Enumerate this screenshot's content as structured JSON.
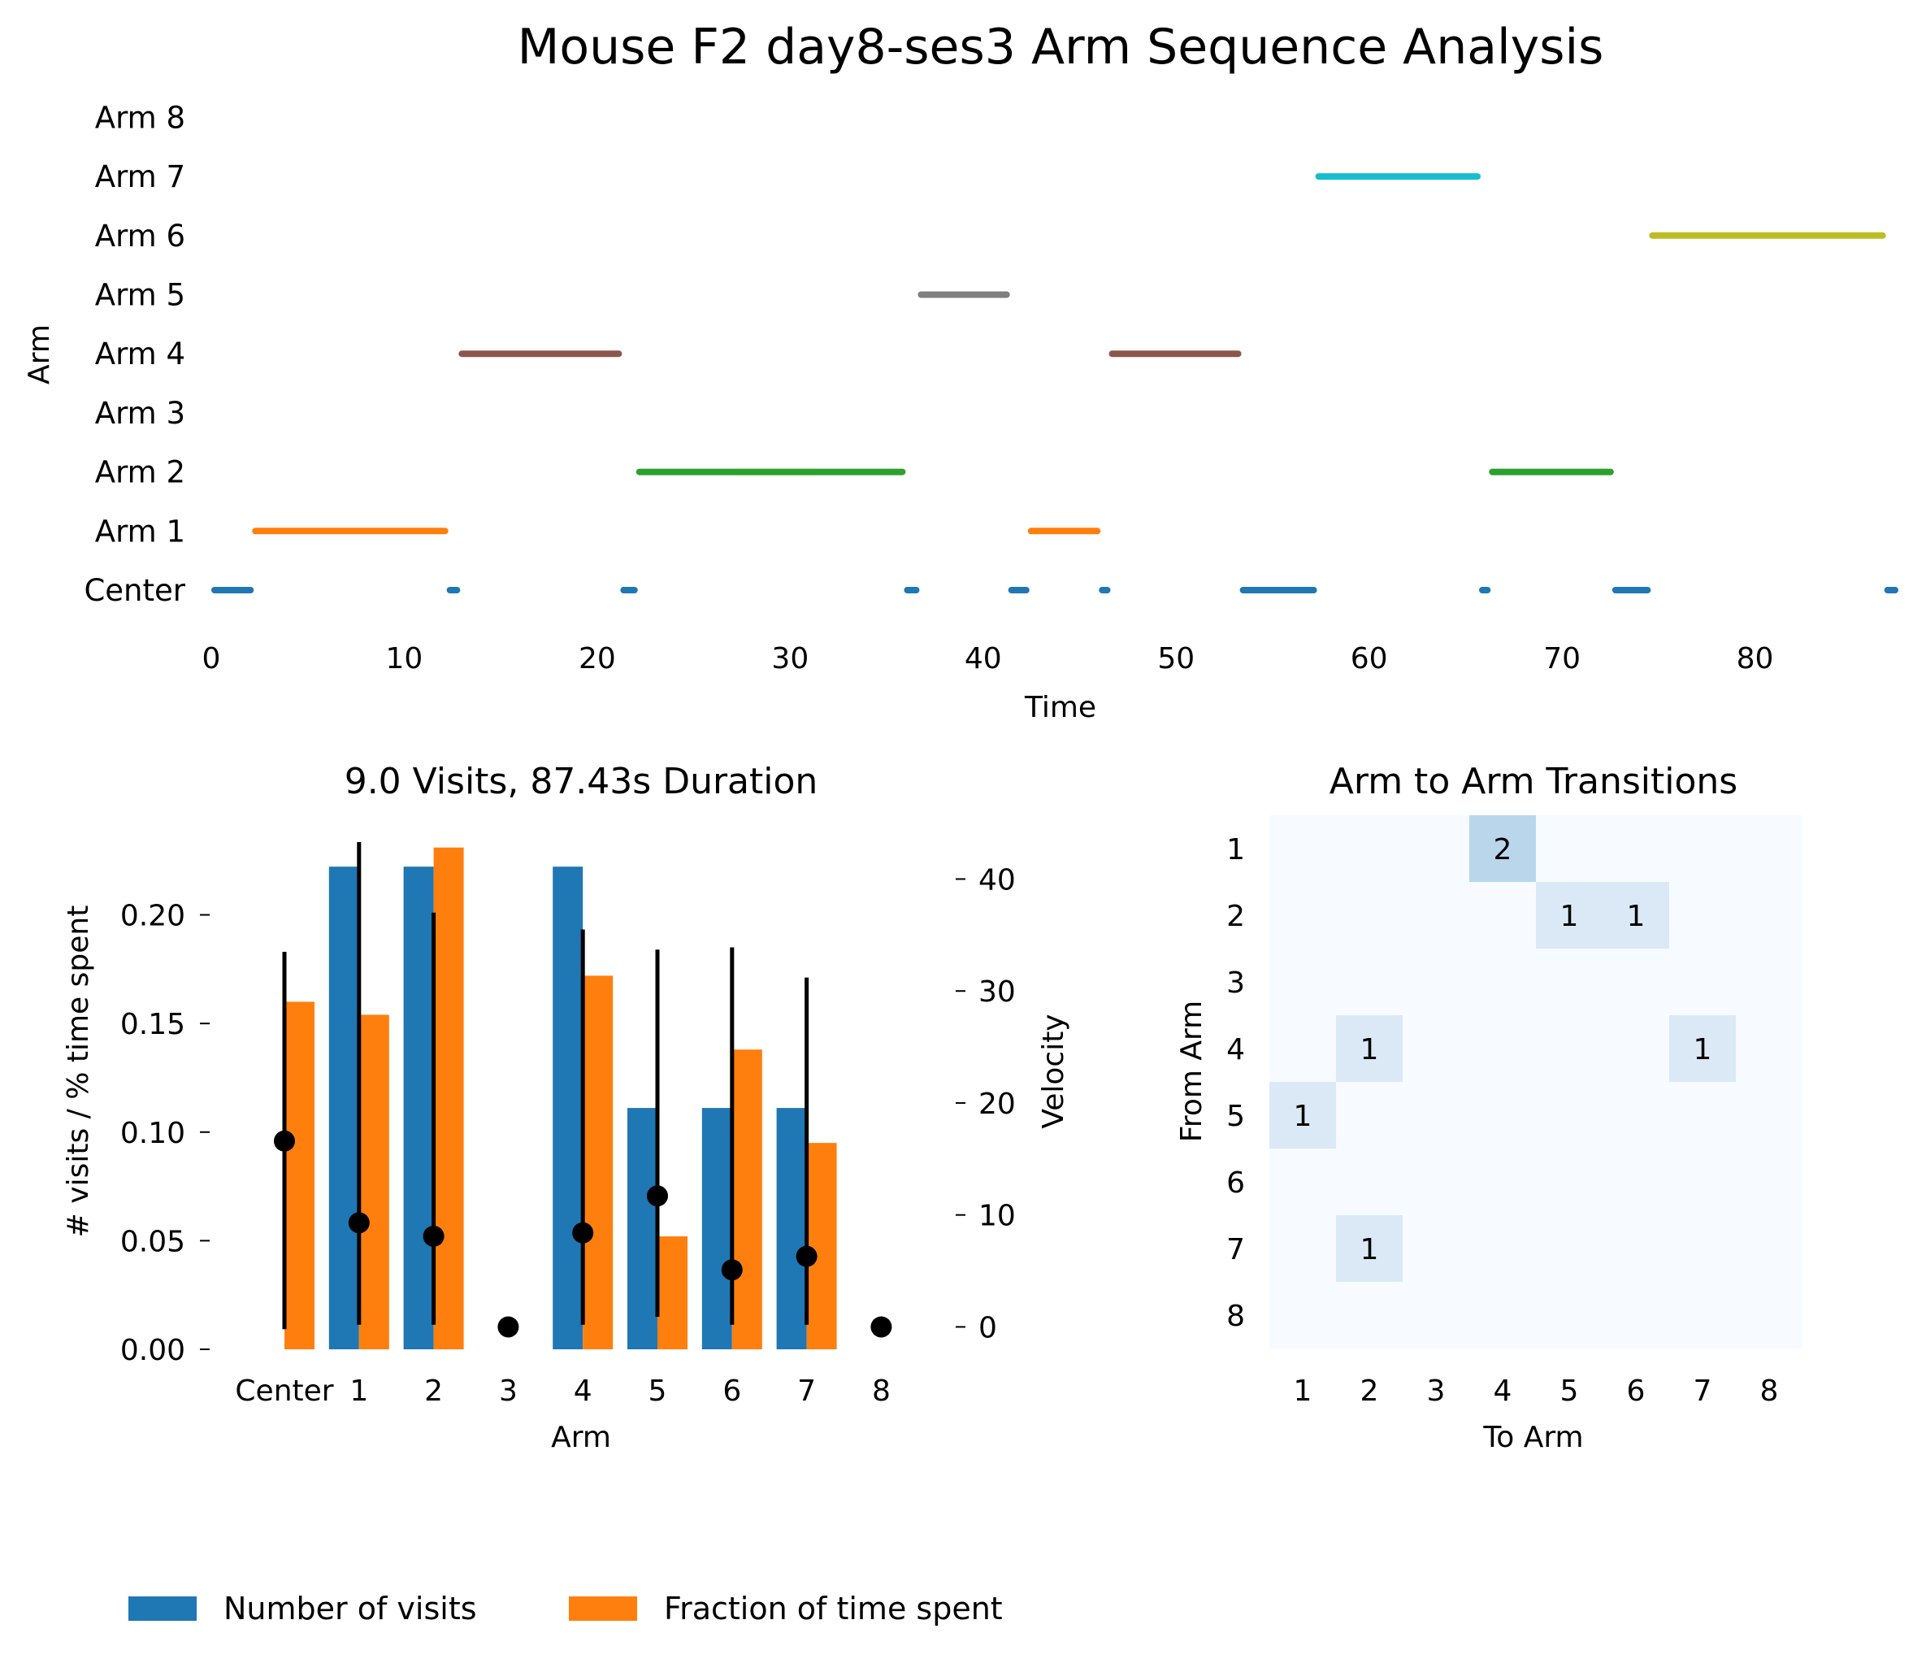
{
  "suptitle": "Mouse F2 day8-ses3 Arm Sequence Analysis",
  "colors": {
    "visits": "#1f77b4",
    "time": "#ff7f0e",
    "arms": [
      "#1f77b4",
      "#ff7f0e",
      "#2ca02c",
      "#d62728",
      "#8c564b",
      "#7f7f7f",
      "#bcbd22",
      "#17becf",
      "#9467bd"
    ],
    "heat_low": "#f7fbff",
    "heat_1": "#dbe9f6",
    "heat_2": "#bad6eb"
  },
  "chart_data": [
    {
      "type": "timeline",
      "title": "",
      "xlabel": "Time",
      "ylabel": "Arm",
      "xlim": [
        0,
        87.43
      ],
      "xticks": [
        0,
        10,
        20,
        30,
        40,
        50,
        60,
        70,
        80
      ],
      "lanes": [
        "Center",
        "Arm 1",
        "Arm 2",
        "Arm 3",
        "Arm 4",
        "Arm 5",
        "Arm 6",
        "Arm 7",
        "Arm 8"
      ],
      "segments": [
        {
          "lane": 0,
          "start": 0.0,
          "end": 2.2
        },
        {
          "lane": 1,
          "start": 2.2,
          "end": 12.2
        },
        {
          "lane": 0,
          "start": 12.2,
          "end": 12.9
        },
        {
          "lane": 4,
          "start": 12.9,
          "end": 21.2
        },
        {
          "lane": 0,
          "start": 21.2,
          "end": 22.1
        },
        {
          "lane": 2,
          "start": 22.1,
          "end": 35.9
        },
        {
          "lane": 0,
          "start": 35.9,
          "end": 36.7
        },
        {
          "lane": 5,
          "start": 36.7,
          "end": 41.3
        },
        {
          "lane": 0,
          "start": 41.3,
          "end": 42.4
        },
        {
          "lane": 1,
          "start": 42.4,
          "end": 46.0
        },
        {
          "lane": 0,
          "start": 46.0,
          "end": 46.6
        },
        {
          "lane": 4,
          "start": 46.6,
          "end": 53.3
        },
        {
          "lane": 0,
          "start": 53.3,
          "end": 57.3
        },
        {
          "lane": 7,
          "start": 57.3,
          "end": 65.7
        },
        {
          "lane": 0,
          "start": 65.7,
          "end": 66.3
        },
        {
          "lane": 2,
          "start": 66.3,
          "end": 72.6
        },
        {
          "lane": 0,
          "start": 72.6,
          "end": 74.6
        },
        {
          "lane": 6,
          "start": 74.6,
          "end": 86.7
        },
        {
          "lane": 0,
          "start": 86.7,
          "end": 87.43
        }
      ]
    },
    {
      "type": "bar",
      "title": "9.0 Visits, 87.43s Duration",
      "xlabel": "Arm",
      "ylabel": "# visits / % time spent",
      "y2label": "Velocity",
      "categories": [
        "Center",
        "1",
        "2",
        "3",
        "4",
        "5",
        "6",
        "7",
        "8"
      ],
      "ylim": [
        0,
        0.2335
      ],
      "yticks": [
        0.0,
        0.05,
        0.1,
        0.15,
        0.2
      ],
      "y2lim": [
        -2,
        43.3
      ],
      "y2ticks": [
        0,
        10,
        20,
        30,
        40
      ],
      "series": [
        {
          "name": "Number of visits",
          "values": [
            0,
            0.2222,
            0.2222,
            0,
            0.2222,
            0.1111,
            0.1111,
            0.1111,
            0
          ]
        },
        {
          "name": "Fraction of time spent",
          "values": [
            0.16,
            0.154,
            0.231,
            0,
            0.172,
            0.052,
            0.138,
            0.095,
            0
          ]
        }
      ],
      "velocity": [
        {
          "mean": 16.6,
          "low": -0.2,
          "high": 33.5
        },
        {
          "mean": 9.3,
          "low": 0.2,
          "high": 43.3
        },
        {
          "mean": 8.1,
          "low": 0.2,
          "high": 37.0
        },
        {
          "mean": 0.0,
          "low": null,
          "high": null
        },
        {
          "mean": 8.4,
          "low": 0.2,
          "high": 35.5
        },
        {
          "mean": 11.7,
          "low": 0.9,
          "high": 33.7
        },
        {
          "mean": 5.1,
          "low": 0.2,
          "high": 33.9
        },
        {
          "mean": 6.3,
          "low": 0.2,
          "high": 31.2
        },
        {
          "mean": 0.0,
          "low": null,
          "high": null
        }
      ]
    },
    {
      "type": "heatmap",
      "title": "Arm to Arm Transitions",
      "xlabel": "To Arm",
      "ylabel": "From Arm",
      "xticklabels": [
        "1",
        "2",
        "3",
        "4",
        "5",
        "6",
        "7",
        "8"
      ],
      "yticklabels": [
        "1",
        "2",
        "3",
        "4",
        "5",
        "6",
        "7",
        "8"
      ],
      "matrix": [
        [
          0,
          0,
          0,
          2,
          0,
          0,
          0,
          0
        ],
        [
          0,
          0,
          0,
          0,
          1,
          1,
          0,
          0
        ],
        [
          0,
          0,
          0,
          0,
          0,
          0,
          0,
          0
        ],
        [
          0,
          1,
          0,
          0,
          0,
          0,
          1,
          0
        ],
        [
          1,
          0,
          0,
          0,
          0,
          0,
          0,
          0
        ],
        [
          0,
          0,
          0,
          0,
          0,
          0,
          0,
          0
        ],
        [
          0,
          1,
          0,
          0,
          0,
          0,
          0,
          0
        ],
        [
          0,
          0,
          0,
          0,
          0,
          0,
          0,
          0
        ]
      ]
    }
  ],
  "legend": {
    "placement": "bottom-left",
    "entries": [
      "Number of visits",
      "Fraction of time spent"
    ]
  }
}
